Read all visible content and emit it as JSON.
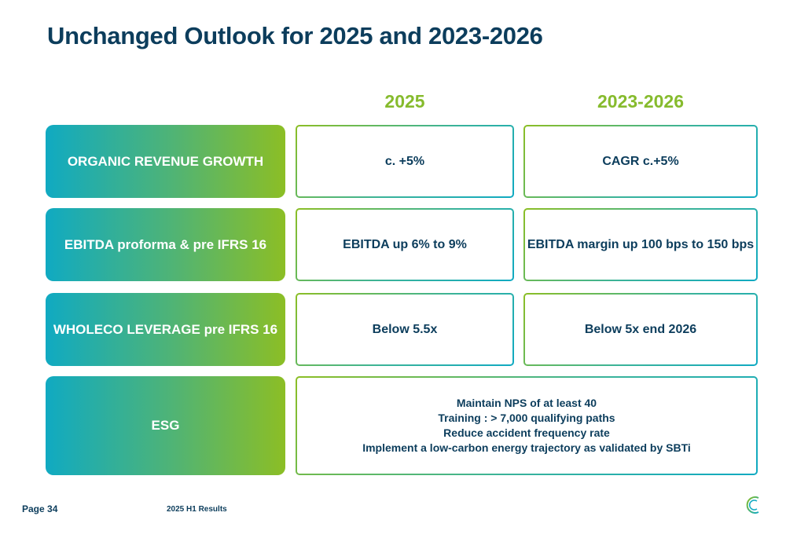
{
  "title": "Unchanged Outlook for 2025 and 2023-2026",
  "columns": [
    "2025",
    "2023-2026"
  ],
  "rows": [
    {
      "label": "ORGANIC REVENUE GROWTH",
      "v2025": "c. +5%",
      "v2026": "CAGR c.+5%"
    },
    {
      "label": "EBITDA proforma & pre IFRS 16",
      "v2025": "EBITDA up 6% to 9%",
      "v2026": "EBITDA margin up 100 bps to 150 bps"
    },
    {
      "label": "WHOLECO LEVERAGE pre IFRS 16",
      "v2025": "Below 5.5x",
      "v2026": "Below 5x end 2026"
    }
  ],
  "esg": {
    "label": "ESG",
    "items": [
      "Maintain NPS of at least 40",
      "Training : > 7,000 qualifying paths",
      "Reduce accident frequency rate",
      "Implement a low-carbon energy trajectory as validated by SBTi"
    ]
  },
  "footer": {
    "page": "Page 34",
    "report": "2025 H1 Results"
  },
  "colors": {
    "navy": "#0c3d5c",
    "green": "#86bb2d",
    "teal": "#10aac2"
  },
  "logo_icon": "c-logo-icon"
}
